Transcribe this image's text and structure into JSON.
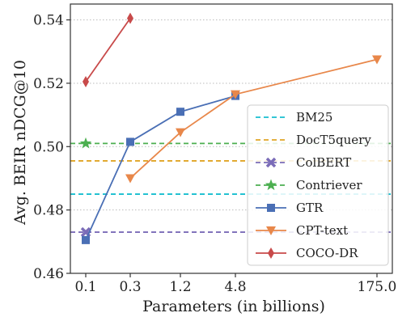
{
  "chart_data": {
    "type": "line",
    "xlabel": "Parameters (in billions)",
    "ylabel": "Avg. BEIR nDCG@10",
    "x_ticks": [
      "0.1",
      "0.3",
      "1.2",
      "4.8",
      "175.0"
    ],
    "ylim": [
      0.46,
      0.545
    ],
    "y_ticks": [
      0.46,
      0.48,
      0.5,
      0.52,
      0.54
    ],
    "y_tick_labels": [
      "0.46",
      "0.48",
      "0.50",
      "0.52",
      "0.54"
    ],
    "grid": "horizontal dotted",
    "legend_position": "bottom-right",
    "reference_lines": [
      {
        "name": "BM25",
        "y": 0.485,
        "color": "#17becf"
      },
      {
        "name": "DocT5query",
        "y": 0.4955,
        "color": "#e0a526"
      },
      {
        "name": "ColBERT",
        "y": 0.473,
        "color": "#7b6cb8",
        "marker": "x",
        "marker_x": "0.1"
      },
      {
        "name": "Contriever",
        "y": 0.501,
        "color": "#4caf50",
        "marker": "star",
        "marker_x": "0.1"
      }
    ],
    "series": [
      {
        "name": "GTR",
        "color": "#4a6fb5",
        "marker": "square",
        "points": [
          [
            "0.1",
            0.4705
          ],
          [
            "0.3",
            0.5015
          ],
          [
            "1.2",
            0.511
          ],
          [
            "4.8",
            0.516
          ]
        ]
      },
      {
        "name": "CPT-text",
        "color": "#e8874a",
        "marker": "triangle-down",
        "points": [
          [
            "0.3",
            0.49
          ],
          [
            "1.2",
            0.5045
          ],
          [
            "4.8",
            0.5165
          ],
          [
            "175.0",
            0.5275
          ]
        ]
      },
      {
        "name": "COCO-DR",
        "color": "#c84a4a",
        "marker": "diamond",
        "points": [
          [
            "0.1",
            0.5205
          ],
          [
            "0.3",
            0.5405
          ]
        ]
      }
    ],
    "legend": [
      "BM25",
      "DocT5query",
      "ColBERT",
      "Contriever",
      "GTR",
      "CPT-text",
      "COCO-DR"
    ]
  }
}
